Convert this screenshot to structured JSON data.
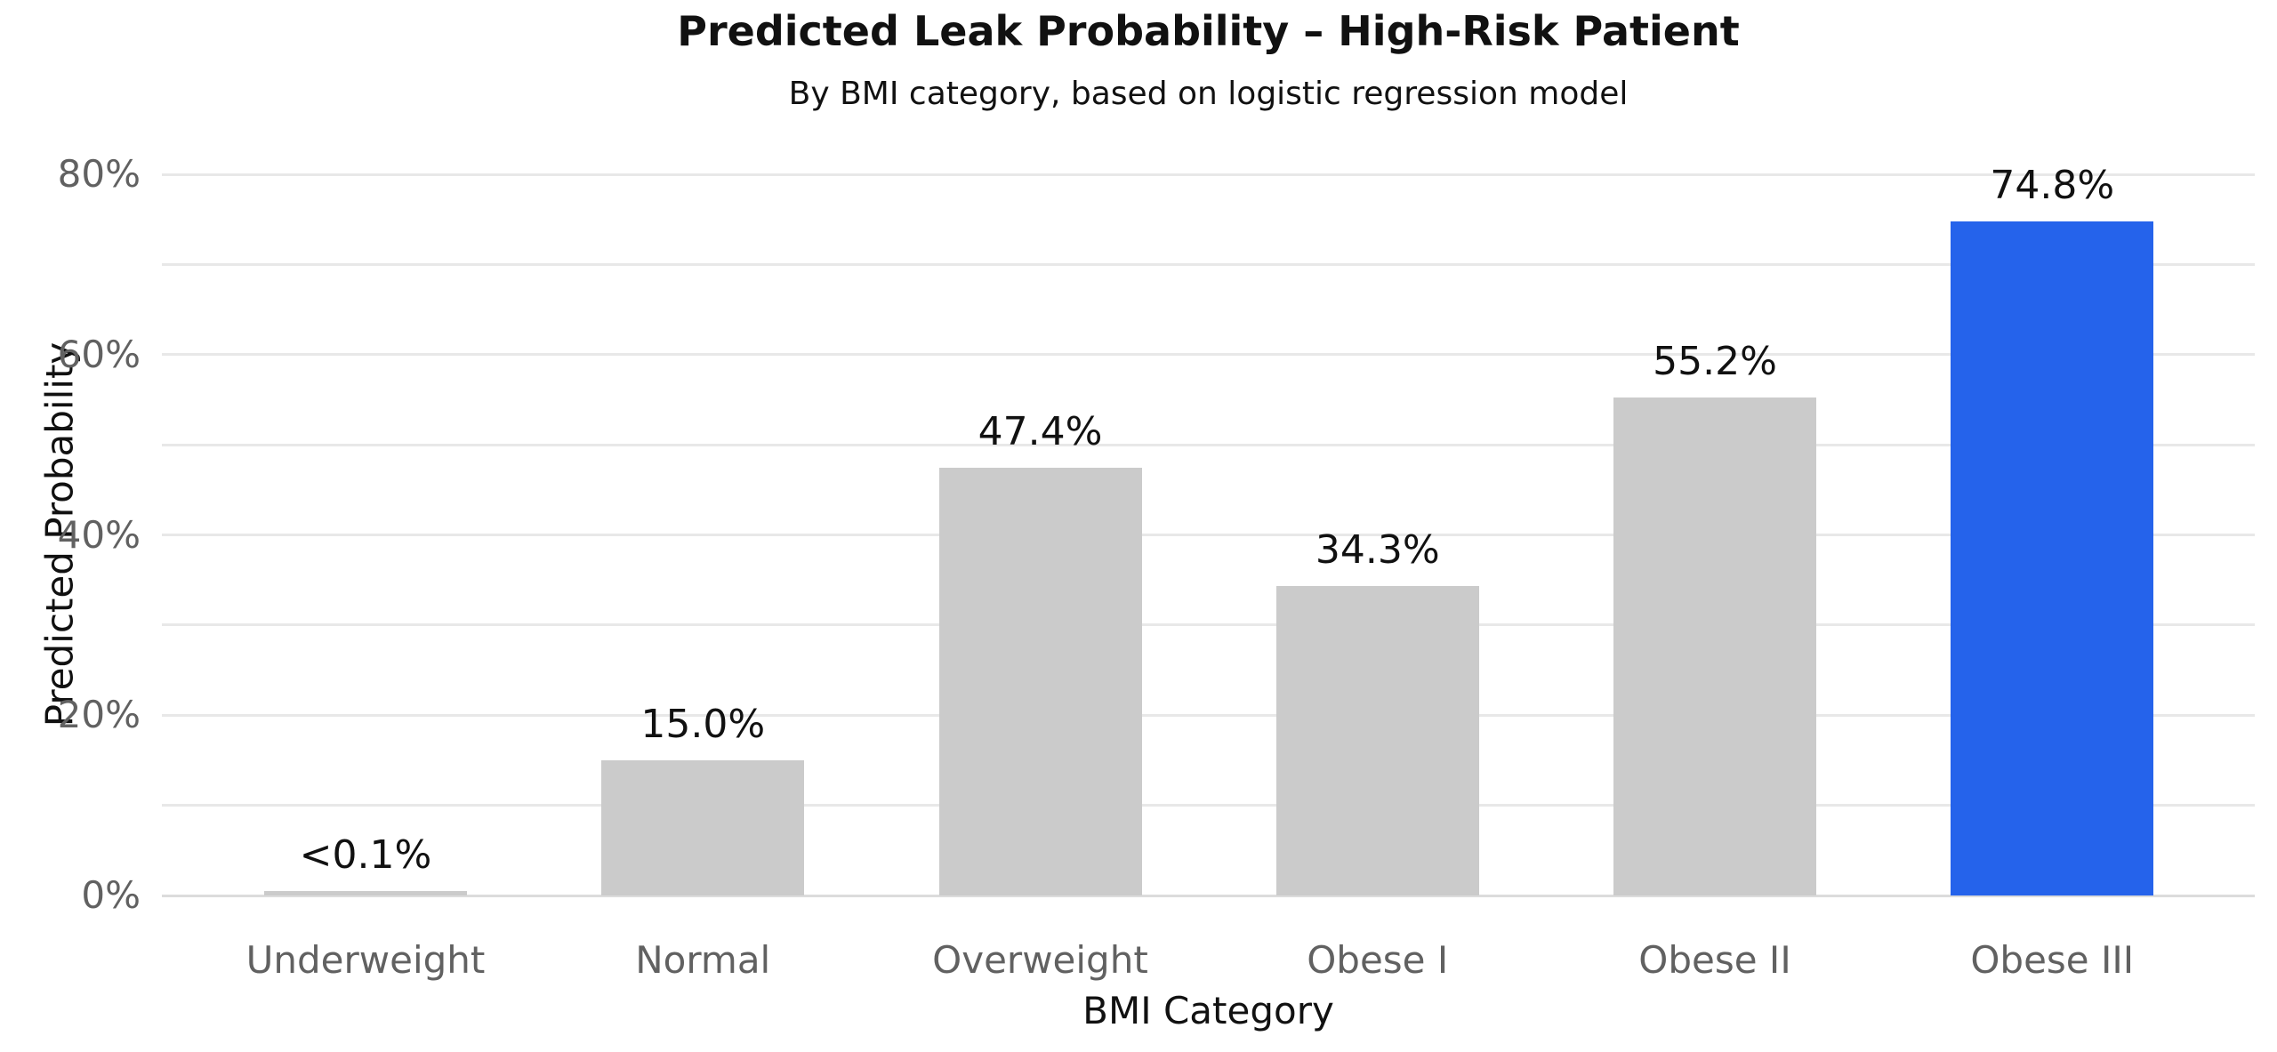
{
  "chart": {
    "title": "Predicted Leak Probability – High-Risk Patient",
    "subtitle": "By BMI category, based on logistic regression model",
    "xlabel": "BMI Category",
    "ylabel": "Predicted Probability"
  },
  "chart_data": {
    "type": "bar",
    "title": "Predicted Leak Probability – High-Risk Patient",
    "subtitle": "By BMI category, based on logistic regression model",
    "xlabel": "BMI Category",
    "ylabel": "Predicted Probability",
    "categories": [
      "Underweight",
      "Normal",
      "Overweight",
      "Obese I",
      "Obese II",
      "Obese III"
    ],
    "values": [
      0.05,
      15.0,
      47.4,
      34.3,
      55.2,
      74.8
    ],
    "value_labels": [
      "<0.1%",
      "15.0%",
      "47.4%",
      "34.3%",
      "55.2%",
      "74.8%"
    ],
    "highlight_category": "Obese III",
    "highlight_index": 5,
    "ylim": [
      0,
      80
    ],
    "grid": true,
    "gridline_percents": [
      0,
      10,
      20,
      30,
      40,
      50,
      60,
      70,
      80
    ],
    "yticks": [
      {
        "pct": 0,
        "label": "0%"
      },
      {
        "pct": 20,
        "label": "20%"
      },
      {
        "pct": 40,
        "label": "40%"
      },
      {
        "pct": 60,
        "label": "60%"
      },
      {
        "pct": 80,
        "label": "80%"
      }
    ],
    "legend": null,
    "colors": {
      "bar_default": "#cbcbcb",
      "bar_highlight": "#2563eb",
      "gridline": "#e8e8e8",
      "baseline": "#dcdcdc",
      "tick_text": "#616161",
      "text": "#111111",
      "background": "#ffffff"
    }
  }
}
